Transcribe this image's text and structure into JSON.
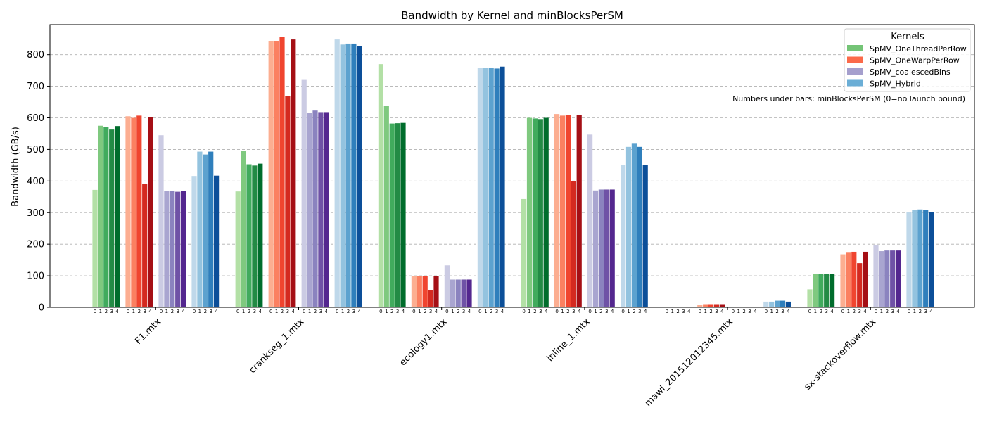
{
  "chart_data": {
    "type": "bar",
    "title": "Bandwidth by Kernel and minBlocksPerSM",
    "xlabel": "",
    "ylabel": "Bandwidth (GB/s)",
    "ylim": [
      0,
      895
    ],
    "yticks": [
      0,
      100,
      200,
      300,
      400,
      500,
      600,
      700,
      800
    ],
    "grid": true,
    "categories": [
      "F1.mtx",
      "crankseg_1.mtx",
      "ecology1.mtx",
      "inline_1.mtx",
      "mawi_201512012345.mtx",
      "sx-stackoverflow.mtx"
    ],
    "sub_labels": [
      "0",
      "1",
      "2",
      "3",
      "4"
    ],
    "note": "Numbers under bars: minBlocksPerSM (0=no launch bound)",
    "legend": {
      "title": "Kernels",
      "placement": "top-right"
    },
    "series": [
      {
        "name": "SpMV_OneThreadPerRow",
        "legend_color": "#74c476",
        "shades": [
          "#b3e0a6",
          "#7fc97f",
          "#41ab5d",
          "#238b45",
          "#006d2c"
        ],
        "values": [
          [
            372,
            575,
            570,
            563,
            574
          ],
          [
            367,
            495,
            453,
            449,
            455
          ],
          [
            770,
            638,
            582,
            583,
            584
          ],
          [
            343,
            600,
            598,
            596,
            600
          ],
          [
            0,
            0,
            0,
            0,
            0
          ],
          [
            57,
            106,
            106,
            106,
            106
          ]
        ]
      },
      {
        "name": "SpMV_OneWarpPerRow",
        "legend_color": "#fb6a4a",
        "shades": [
          "#fcae91",
          "#fb8061",
          "#f0452f",
          "#d42a20",
          "#a50f15"
        ],
        "values": [
          [
            605,
            600,
            607,
            390,
            603
          ],
          [
            842,
            842,
            855,
            670,
            848
          ],
          [
            100,
            100,
            100,
            54,
            100
          ],
          [
            612,
            607,
            610,
            400,
            609
          ],
          [
            8,
            10,
            10,
            10,
            10
          ],
          [
            168,
            173,
            176,
            140,
            176
          ]
        ]
      },
      {
        "name": "SpMV_coalescedBins",
        "legend_color": "#a59fcd",
        "shades": [
          "#cbcbe3",
          "#a9a5d0",
          "#8b83bf",
          "#6f52a6",
          "#54278f"
        ],
        "values": [
          [
            545,
            368,
            368,
            366,
            368
          ],
          [
            720,
            615,
            623,
            618,
            618
          ],
          [
            133,
            88,
            88,
            88,
            88
          ],
          [
            547,
            370,
            373,
            373,
            373
          ],
          [
            0,
            0,
            0,
            0,
            0
          ],
          [
            196,
            178,
            180,
            180,
            180
          ]
        ]
      },
      {
        "name": "SpMV_Hybrid",
        "legend_color": "#6baed6",
        "shades": [
          "#bfd8ea",
          "#93c3df",
          "#5ca2cf",
          "#2f7fbc",
          "#0c4f99"
        ],
        "values": [
          [
            416,
            493,
            484,
            493,
            417
          ],
          [
            848,
            832,
            835,
            835,
            828
          ],
          [
            757,
            757,
            757,
            756,
            762
          ],
          [
            451,
            508,
            518,
            508,
            451
          ],
          [
            18,
            18,
            21,
            21,
            18
          ],
          [
            302,
            308,
            310,
            308,
            302
          ]
        ]
      }
    ]
  }
}
